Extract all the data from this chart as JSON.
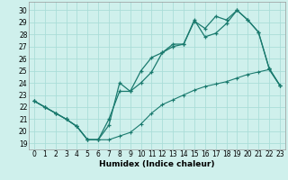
{
  "xlabel": "Humidex (Indice chaleur)",
  "bg_color": "#cff0ec",
  "grid_color": "#aaddd8",
  "line_color": "#1a7a6e",
  "xlim": [
    -0.5,
    23.5
  ],
  "ylim": [
    18.5,
    30.7
  ],
  "yticks": [
    19,
    20,
    21,
    22,
    23,
    24,
    25,
    26,
    27,
    28,
    29,
    30
  ],
  "xticks": [
    0,
    1,
    2,
    3,
    4,
    5,
    6,
    7,
    8,
    9,
    10,
    11,
    12,
    13,
    14,
    15,
    16,
    17,
    18,
    19,
    20,
    21,
    22,
    23
  ],
  "line1_x": [
    0,
    1,
    2,
    3,
    4,
    5,
    6,
    7,
    8,
    9,
    10,
    11,
    12,
    13,
    14,
    15,
    16,
    17,
    18,
    19,
    20,
    21,
    22,
    23
  ],
  "line1_y": [
    22.5,
    22.0,
    21.5,
    21.0,
    20.4,
    19.3,
    19.3,
    21.0,
    23.3,
    23.3,
    24.0,
    24.9,
    26.5,
    27.2,
    27.2,
    29.1,
    28.5,
    29.5,
    29.2,
    30.0,
    29.2,
    28.2,
    25.2,
    23.8
  ],
  "line2_x": [
    0,
    1,
    2,
    3,
    4,
    5,
    6,
    7,
    8,
    9,
    10,
    11,
    12,
    13,
    14,
    15,
    16,
    17,
    18,
    19,
    20,
    21,
    22,
    23
  ],
  "line2_y": [
    22.5,
    22.0,
    21.5,
    21.0,
    20.4,
    19.3,
    19.3,
    20.5,
    24.0,
    23.3,
    25.0,
    26.1,
    26.5,
    27.0,
    27.2,
    29.2,
    27.8,
    28.1,
    28.9,
    30.0,
    29.2,
    28.2,
    25.2,
    23.8
  ],
  "line3_x": [
    0,
    1,
    2,
    3,
    4,
    5,
    6,
    7,
    8,
    9,
    10,
    11,
    12,
    13,
    14,
    15,
    16,
    17,
    18,
    19,
    20,
    21,
    22,
    23
  ],
  "line3_y": [
    22.5,
    22.0,
    21.5,
    21.0,
    20.4,
    19.3,
    19.3,
    19.3,
    19.6,
    19.9,
    20.6,
    21.5,
    22.2,
    22.6,
    23.0,
    23.4,
    23.7,
    23.9,
    24.1,
    24.4,
    24.7,
    24.9,
    25.1,
    23.8
  ],
  "xlabel_fontsize": 6.5,
  "tick_fontsize": 5.5
}
